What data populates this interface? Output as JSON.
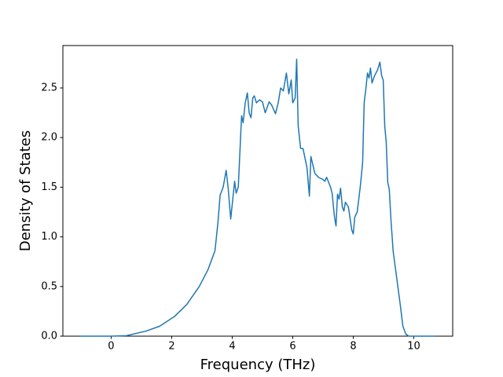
{
  "chart_data": {
    "type": "line",
    "xlabel": "Frequency (THz)",
    "ylabel": "Density of States",
    "x": [
      -1.01,
      0,
      0.5,
      1.14,
      1.6,
      2.1,
      2.5,
      2.91,
      3.2,
      3.43,
      3.53,
      3.6,
      3.7,
      3.8,
      3.87,
      3.95,
      4.08,
      4.13,
      4.2,
      4.31,
      4.36,
      4.43,
      4.5,
      4.56,
      4.62,
      4.68,
      4.73,
      4.8,
      4.9,
      5.0,
      5.09,
      5.22,
      5.3,
      5.43,
      5.52,
      5.6,
      5.69,
      5.79,
      5.87,
      5.95,
      6.0,
      6.08,
      6.13,
      6.18,
      6.26,
      6.34,
      6.4,
      6.47,
      6.55,
      6.6,
      6.73,
      6.85,
      6.99,
      7.06,
      7.12,
      7.25,
      7.3,
      7.38,
      7.43,
      7.48,
      7.53,
      7.58,
      7.64,
      7.69,
      7.74,
      7.84,
      7.95,
      8.0,
      8.05,
      8.13,
      8.23,
      8.31,
      8.36,
      8.42,
      8.47,
      8.52,
      8.57,
      8.62,
      8.7,
      8.8,
      8.88,
      8.94,
      8.99,
      9.04,
      9.09,
      9.14,
      9.19,
      9.25,
      9.32,
      9.43,
      9.56,
      9.64,
      9.74,
      9.84,
      10.7
    ],
    "series": [
      {
        "color": "#1f77b4",
        "values": [
          0,
          0,
          0.005,
          0.05,
          0.1,
          0.2,
          0.32,
          0.5,
          0.67,
          0.86,
          1.15,
          1.42,
          1.5,
          1.67,
          1.48,
          1.18,
          1.56,
          1.44,
          1.5,
          2.22,
          2.15,
          2.35,
          2.45,
          2.25,
          2.2,
          2.4,
          2.42,
          2.35,
          2.38,
          2.36,
          2.25,
          2.36,
          2.33,
          2.24,
          2.35,
          2.5,
          2.47,
          2.65,
          2.44,
          2.58,
          2.35,
          2.4,
          2.79,
          2.12,
          1.89,
          1.89,
          1.8,
          1.7,
          1.41,
          1.81,
          1.64,
          1.6,
          1.58,
          1.56,
          1.6,
          1.5,
          1.44,
          1.2,
          1.11,
          1.43,
          1.38,
          1.49,
          1.3,
          1.26,
          1.35,
          1.3,
          1.07,
          1.03,
          1.2,
          1.25,
          1.5,
          1.75,
          2.35,
          2.5,
          2.65,
          2.6,
          2.7,
          2.55,
          2.62,
          2.68,
          2.76,
          2.62,
          2.58,
          2.12,
          1.95,
          1.55,
          1.48,
          1.15,
          0.85,
          0.6,
          0.3,
          0.1,
          0.02,
          0,
          0
        ]
      }
    ],
    "xlim": [
      -1.596,
      11.286
    ],
    "ylim": [
      0,
      2.927
    ],
    "xticks": [
      0,
      2,
      4,
      6,
      8,
      10
    ],
    "yticks": [
      {
        "value": 0,
        "label": "0.0"
      },
      0.5,
      {
        "value": 1,
        "label": "1.0"
      },
      1.5,
      {
        "value": 2,
        "label": "2.0"
      },
      2.5
    ],
    "grid": false
  }
}
